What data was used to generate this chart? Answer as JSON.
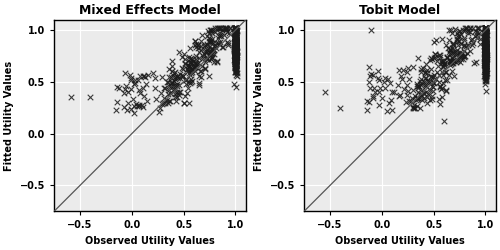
{
  "title_left": "Mixed Effects Model",
  "title_right": "Tobit Model",
  "xlabel": "Observed Utility Values",
  "ylabel": "Fitted Utility Values",
  "xlim": [
    -0.75,
    1.1
  ],
  "ylim": [
    -0.75,
    1.1
  ],
  "xticks": [
    -0.5,
    0.0,
    0.5,
    1.0
  ],
  "yticks": [
    -0.5,
    0.0,
    0.5,
    1.0
  ],
  "axes_bg": "#ebebeb",
  "fig_bg": "#ffffff",
  "grid_color": "#ffffff",
  "marker": "x",
  "marker_color": "#1a1a1a",
  "marker_size": 4,
  "marker_lw": 0.8,
  "diag_color": "#555555",
  "diag_lw": 0.9,
  "title_fontsize": 9,
  "label_fontsize": 7,
  "tick_fontsize": 7,
  "title_fontweight": "bold",
  "label_fontweight": "bold",
  "tick_fontweight": "bold"
}
